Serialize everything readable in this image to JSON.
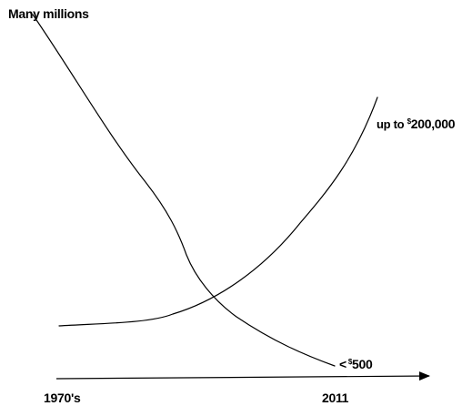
{
  "chart_data": {
    "type": "line",
    "title": "",
    "xlabel": "",
    "ylabel": "",
    "x_tick_labels": {
      "start": "1970's",
      "end": "2011"
    },
    "series": [
      {
        "values": [
          "Many millions",
          "<$500"
        ],
        "start_label_main": "Many millions",
        "end_label_prefix": "<",
        "end_label_currency": "$",
        "end_label_amount": "500"
      },
      {
        "values": [
          "",
          "up to $200,000"
        ],
        "end_label_prefix": "up to ",
        "end_label_currency": "$",
        "end_label_amount": "200,000"
      }
    ],
    "grid": false,
    "legend": "none",
    "colors": {
      "line": "#000000",
      "background": "#ffffff"
    }
  }
}
